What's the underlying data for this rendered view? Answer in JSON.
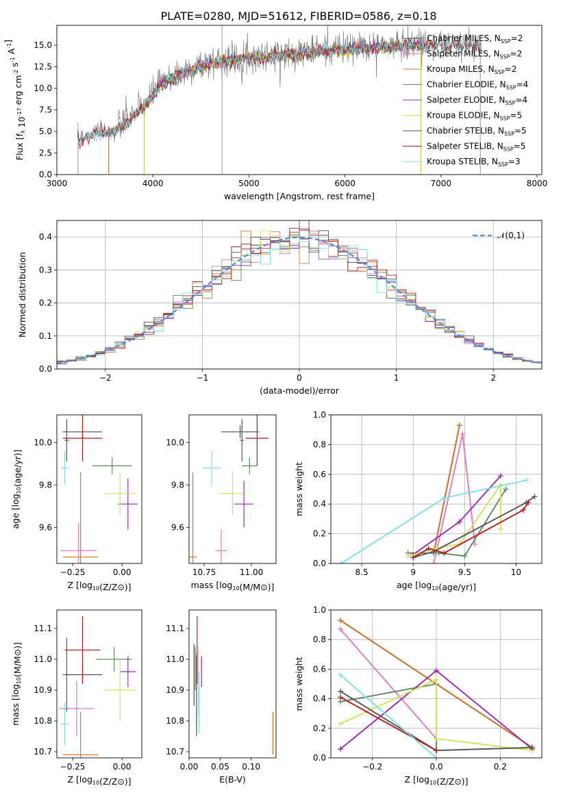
{
  "figure": {
    "title": "PLATE=0280, MJD=51612, FIBERID=0586, z=0.18"
  },
  "models": [
    {
      "name": "Chabrier MILES",
      "color": "#4d4d4d",
      "nssp": "2"
    },
    {
      "name": "Salpeter MILES",
      "color": "#e377c2",
      "nssp": "2"
    },
    {
      "name": "Kroupa MILES",
      "color": "#d2762b",
      "nssp": "2"
    },
    {
      "name": "Chabrier ELODIE",
      "color": "#5b8a5b",
      "nssp": "4"
    },
    {
      "name": "Salpeter ELODIE",
      "color": "#9c27b0",
      "nssp": "4"
    },
    {
      "name": "Kroupa ELODIE",
      "color": "#d4e157",
      "nssp": "5"
    },
    {
      "name": "Chabrier STELIB",
      "color": "#555555",
      "nssp": "5"
    },
    {
      "name": "Salpeter STELIB",
      "color": "#b71c1c",
      "nssp": "5"
    },
    {
      "name": "Kroupa STELIB",
      "color": "#80deea",
      "nssp": "3"
    }
  ],
  "chart_data": [
    {
      "id": "spectrum",
      "type": "line",
      "xlabel": "wavelength [Angstrom, rest frame]",
      "ylabel": "Flux [f_λ 10^-17 erg cm^-2 s^-1 A^-1]",
      "xlim": [
        3000,
        8050
      ],
      "ylim": [
        0,
        17.3
      ],
      "xticks": [
        3000,
        4000,
        5000,
        6000,
        7000,
        8000
      ],
      "yticks": [
        0.0,
        2.5,
        5.0,
        7.5,
        10.0,
        12.5,
        15.0
      ],
      "continuum": {
        "x": [
          3220,
          3400,
          3600,
          3800,
          3950,
          4050,
          4200,
          4400,
          4600,
          4800,
          5000,
          5200,
          5400,
          5600,
          5800,
          6000,
          6200,
          6400,
          6600,
          6800,
          7000,
          7200,
          7420
        ],
        "y": [
          4.1,
          4.9,
          5.1,
          7.0,
          8.5,
          10.3,
          11.3,
          12.3,
          13.0,
          13.4,
          13.7,
          13.8,
          14.1,
          14.3,
          14.6,
          14.6,
          14.8,
          14.9,
          15.1,
          15.3,
          15.0,
          15.1,
          15.2
        ]
      },
      "legend_position": "upper right",
      "grid": false
    },
    {
      "id": "residuals",
      "type": "line",
      "xlabel": "(data-model)/error",
      "ylabel": "Normed distribution",
      "xlim": [
        -2.5,
        2.5
      ],
      "ylim": [
        0,
        0.45
      ],
      "xticks": [
        -2,
        -1,
        0,
        1,
        2
      ],
      "yticks": [
        0.0,
        0.1,
        0.2,
        0.3,
        0.4
      ],
      "reference": {
        "name": "𝒩(0,1)",
        "mean": 0,
        "sigma": 1
      },
      "legend_position": "upper right",
      "grid": true
    },
    {
      "id": "age_vs_Z",
      "type": "scatter",
      "xlabel": "Z [log10(Z/Z⊙)]",
      "ylabel": "age  [log10(age/yr)]",
      "xlim": [
        -0.33,
        0.1
      ],
      "ylim": [
        9.43,
        10.13
      ],
      "xticks": [
        -0.25,
        0.0
      ],
      "yticks": [
        9.6,
        9.8,
        10.0
      ],
      "points": [
        {
          "model": "Chabrier MILES",
          "x": -0.2,
          "xerr": 0.1,
          "y": 10.05,
          "yerr": 0.03
        },
        {
          "model": "Salpeter MILES",
          "x": -0.22,
          "xerr": 0.09,
          "y": 9.49,
          "yerr": 0.13
        },
        {
          "model": "Kroupa MILES",
          "x": -0.21,
          "xerr": 0.09,
          "y": 9.46,
          "yerr": 0.4
        },
        {
          "model": "Chabrier ELODIE",
          "x": -0.05,
          "xerr": 0.1,
          "y": 9.89,
          "yerr": 0.04
        },
        {
          "model": "Salpeter ELODIE",
          "x": 0.03,
          "xerr": 0.05,
          "y": 9.71,
          "yerr": 0.12
        },
        {
          "model": "Kroupa ELODIE",
          "x": -0.01,
          "xerr": 0.08,
          "y": 9.76,
          "yerr": 0.1
        },
        {
          "model": "Chabrier STELIB",
          "x": -0.28,
          "xerr": 0.01,
          "y": 10.01,
          "yerr": 0.1
        },
        {
          "model": "Salpeter STELIB",
          "x": -0.2,
          "xerr": 0.1,
          "y": 10.02,
          "yerr": 0.11
        },
        {
          "model": "Kroupa STELIB",
          "x": -0.29,
          "xerr": 0.02,
          "y": 9.88,
          "yerr": 0.08
        }
      ]
    },
    {
      "id": "age_vs_mass",
      "type": "scatter",
      "xlabel": "mass [log10(M/M⊙)]",
      "ylabel": "",
      "xlim": [
        10.67,
        11.13
      ],
      "ylim": [
        9.43,
        10.13
      ],
      "xticks": [
        10.75,
        11.0
      ],
      "yticks": [
        9.6,
        9.8,
        10.0
      ],
      "points": [
        {
          "model": "Chabrier MILES",
          "x": 10.94,
          "xerr": 0.1,
          "y": 10.05,
          "yerr": 0.03
        },
        {
          "model": "Salpeter MILES",
          "x": 10.84,
          "xerr": 0.03,
          "y": 9.49,
          "yerr": 0.1
        },
        {
          "model": "Kroupa MILES",
          "x": 10.69,
          "xerr": 0.02,
          "y": 9.46,
          "yerr": 0.4
        },
        {
          "model": "Chabrier ELODIE",
          "x": 10.99,
          "xerr": 0.04,
          "y": 9.89,
          "yerr": 0.04
        },
        {
          "model": "Salpeter ELODIE",
          "x": 10.96,
          "xerr": 0.05,
          "y": 9.71,
          "yerr": 0.11
        },
        {
          "model": "Kroupa ELODIE",
          "x": 10.9,
          "xerr": 0.07,
          "y": 9.76,
          "yerr": 0.1
        },
        {
          "model": "Chabrier STELIB",
          "x": 10.95,
          "xerr": 0.01,
          "y": 10.01,
          "yerr": 0.1
        },
        {
          "model": "Salpeter STELIB",
          "x": 11.03,
          "xerr": 0.06,
          "y": 10.02,
          "yerr": 0.13
        },
        {
          "model": "Kroupa STELIB",
          "x": 10.79,
          "xerr": 0.05,
          "y": 9.88,
          "yerr": 0.08
        }
      ]
    },
    {
      "id": "mass_weight_vs_age",
      "type": "line",
      "xlabel": "age  [log10(age/yr)]",
      "ylabel": "mass weight",
      "xlim": [
        8.2,
        10.25
      ],
      "ylim": [
        0,
        1.0
      ],
      "xticks": [
        8.5,
        9.0,
        9.5,
        10.0
      ],
      "yticks": [
        0.0,
        0.2,
        0.4,
        0.6,
        0.8,
        1.0
      ],
      "grid": true,
      "series": [
        {
          "model": "Chabrier MILES",
          "x": [
            9.2,
            9.45
          ],
          "y": [
            0.07,
            0.93
          ]
        },
        {
          "model": "Salpeter MILES",
          "x": [
            9.2,
            9.48,
            9.6
          ],
          "y": [
            0.0,
            0.87,
            0.13
          ]
        },
        {
          "model": "Kroupa MILES",
          "x": [
            9.2,
            9.45
          ],
          "y": [
            0.07,
            0.93
          ]
        },
        {
          "model": "Chabrier ELODIE",
          "x": [
            8.95,
            9.25,
            9.5,
            9.9
          ],
          "y": [
            0.07,
            0.07,
            0.05,
            0.5
          ]
        },
        {
          "model": "Salpeter ELODIE",
          "x": [
            9.0,
            9.45,
            9.85
          ],
          "y": [
            0.06,
            0.28,
            0.59
          ]
        },
        {
          "model": "Kroupa ELODIE",
          "x": [
            8.95,
            9.2,
            9.45,
            9.85,
            9.85
          ],
          "y": [
            0.05,
            0.1,
            0.13,
            0.53,
            0.23
          ]
        },
        {
          "model": "Chabrier STELIB",
          "x": [
            9.0,
            9.2,
            10.1,
            10.18
          ],
          "y": [
            0.04,
            0.08,
            0.41,
            0.45
          ]
        },
        {
          "model": "Salpeter STELIB",
          "x": [
            9.0,
            9.15,
            9.3,
            10.07,
            10.12
          ],
          "y": [
            0.04,
            0.1,
            0.07,
            0.36,
            0.41
          ]
        },
        {
          "model": "Kroupa STELIB",
          "x": [
            8.3,
            9.3,
            10.1
          ],
          "y": [
            0.0,
            0.44,
            0.56
          ]
        }
      ]
    },
    {
      "id": "mass_vs_Z",
      "type": "scatter",
      "xlabel": "Z [log10(Z/Z⊙)]",
      "ylabel": "mass [log10(M/M⊙)]",
      "xlim": [
        -0.33,
        0.1
      ],
      "ylim": [
        10.68,
        11.16
      ],
      "xticks": [
        -0.25,
        0.0
      ],
      "yticks": [
        10.7,
        10.8,
        10.9,
        11.0,
        11.1
      ],
      "points": [
        {
          "model": "Chabrier MILES",
          "x": -0.2,
          "xerr": 0.1,
          "y": 10.95,
          "yerr": 0.03
        },
        {
          "model": "Salpeter MILES",
          "x": -0.23,
          "xerr": 0.09,
          "y": 10.84,
          "yerr": 0.09
        },
        {
          "model": "Kroupa MILES",
          "x": -0.21,
          "xerr": 0.09,
          "y": 10.69,
          "yerr": 0.14
        },
        {
          "model": "Chabrier ELODIE",
          "x": -0.04,
          "xerr": 0.09,
          "y": 11.0,
          "yerr": 0.04
        },
        {
          "model": "Salpeter ELODIE",
          "x": 0.03,
          "xerr": 0.04,
          "y": 10.96,
          "yerr": 0.05
        },
        {
          "model": "Kroupa ELODIE",
          "x": -0.01,
          "xerr": 0.08,
          "y": 10.9,
          "yerr": 0.1
        },
        {
          "model": "Chabrier STELIB",
          "x": -0.28,
          "xerr": 0.01,
          "y": 10.95,
          "yerr": 0.12
        },
        {
          "model": "Salpeter STELIB",
          "x": -0.2,
          "xerr": 0.09,
          "y": 11.03,
          "yerr": 0.11
        },
        {
          "model": "Kroupa STELIB",
          "x": -0.29,
          "xerr": 0.02,
          "y": 10.79,
          "yerr": 0.07
        }
      ]
    },
    {
      "id": "mass_vs_ebv",
      "type": "scatter",
      "xlabel": "E(B-V)",
      "ylabel": "",
      "xlim": [
        0.0,
        0.14
      ],
      "ylim": [
        10.68,
        11.16
      ],
      "xticks": [
        0.0,
        0.05,
        0.1
      ],
      "xticklabels": [
        "0.00",
        "0.05",
        "0.10"
      ],
      "yticks": [
        10.7,
        10.8,
        10.9,
        11.0,
        11.1
      ],
      "points": [
        {
          "model": "Chabrier MILES",
          "x": 0.008,
          "y": 10.95,
          "yerr": 0.1
        },
        {
          "model": "Salpeter MILES",
          "x": 0.012,
          "y": 10.9,
          "yerr": 0.12
        },
        {
          "model": "Kroupa MILES",
          "x": 0.135,
          "y": 10.76,
          "yerr": 0.07
        },
        {
          "model": "Chabrier ELODIE",
          "x": 0.01,
          "y": 10.97,
          "yerr": 0.07
        },
        {
          "model": "Salpeter ELODIE",
          "x": 0.02,
          "y": 10.96,
          "yerr": 0.05
        },
        {
          "model": "Kroupa ELODIE",
          "x": 0.015,
          "y": 10.93,
          "yerr": 0.11
        },
        {
          "model": "Chabrier STELIB",
          "x": 0.012,
          "y": 10.88,
          "yerr": 0.13
        },
        {
          "model": "Salpeter STELIB",
          "x": 0.013,
          "y": 11.03,
          "yerr": 0.11
        },
        {
          "model": "Kroupa STELIB",
          "x": 0.016,
          "y": 10.86,
          "yerr": 0.1
        }
      ]
    },
    {
      "id": "mass_weight_vs_Z",
      "type": "line",
      "xlabel": "Z [log10(Z/Z⊙)]",
      "ylabel": "mass weight",
      "xlim": [
        -0.33,
        0.33
      ],
      "ylim": [
        0,
        1.0
      ],
      "xticks": [
        -0.2,
        0.0,
        0.2
      ],
      "yticks": [
        0.0,
        0.2,
        0.4,
        0.6,
        0.8,
        1.0
      ],
      "grid": true,
      "series": [
        {
          "model": "Chabrier MILES",
          "x": [
            -0.3,
            0.3
          ],
          "y": [
            0.93,
            0.07
          ]
        },
        {
          "model": "Salpeter MILES",
          "x": [
            -0.3,
            0.0
          ],
          "y": [
            0.87,
            0.13
          ]
        },
        {
          "model": "Kroupa MILES",
          "x": [
            -0.3,
            0.3
          ],
          "y": [
            0.93,
            0.07
          ]
        },
        {
          "model": "Chabrier ELODIE",
          "x": [
            -0.3,
            0.0,
            0.0,
            0.3
          ],
          "y": [
            0.38,
            0.5,
            0.05,
            0.07
          ]
        },
        {
          "model": "Salpeter ELODIE",
          "x": [
            -0.3,
            0.0,
            0.3
          ],
          "y": [
            0.06,
            0.59,
            0.06
          ]
        },
        {
          "model": "Kroupa ELODIE",
          "x": [
            -0.3,
            0.0,
            0.0,
            0.3
          ],
          "y": [
            0.23,
            0.53,
            0.13,
            0.05
          ]
        },
        {
          "model": "Chabrier STELIB",
          "x": [
            -0.3,
            0.0,
            0.3
          ],
          "y": [
            0.45,
            0.05,
            0.07
          ]
        },
        {
          "model": "Salpeter STELIB",
          "x": [
            -0.3,
            0.0
          ],
          "y": [
            0.41,
            0.05
          ]
        },
        {
          "model": "Kroupa STELIB",
          "x": [
            -0.3,
            0.0
          ],
          "y": [
            0.56,
            0.0
          ]
        }
      ]
    }
  ]
}
